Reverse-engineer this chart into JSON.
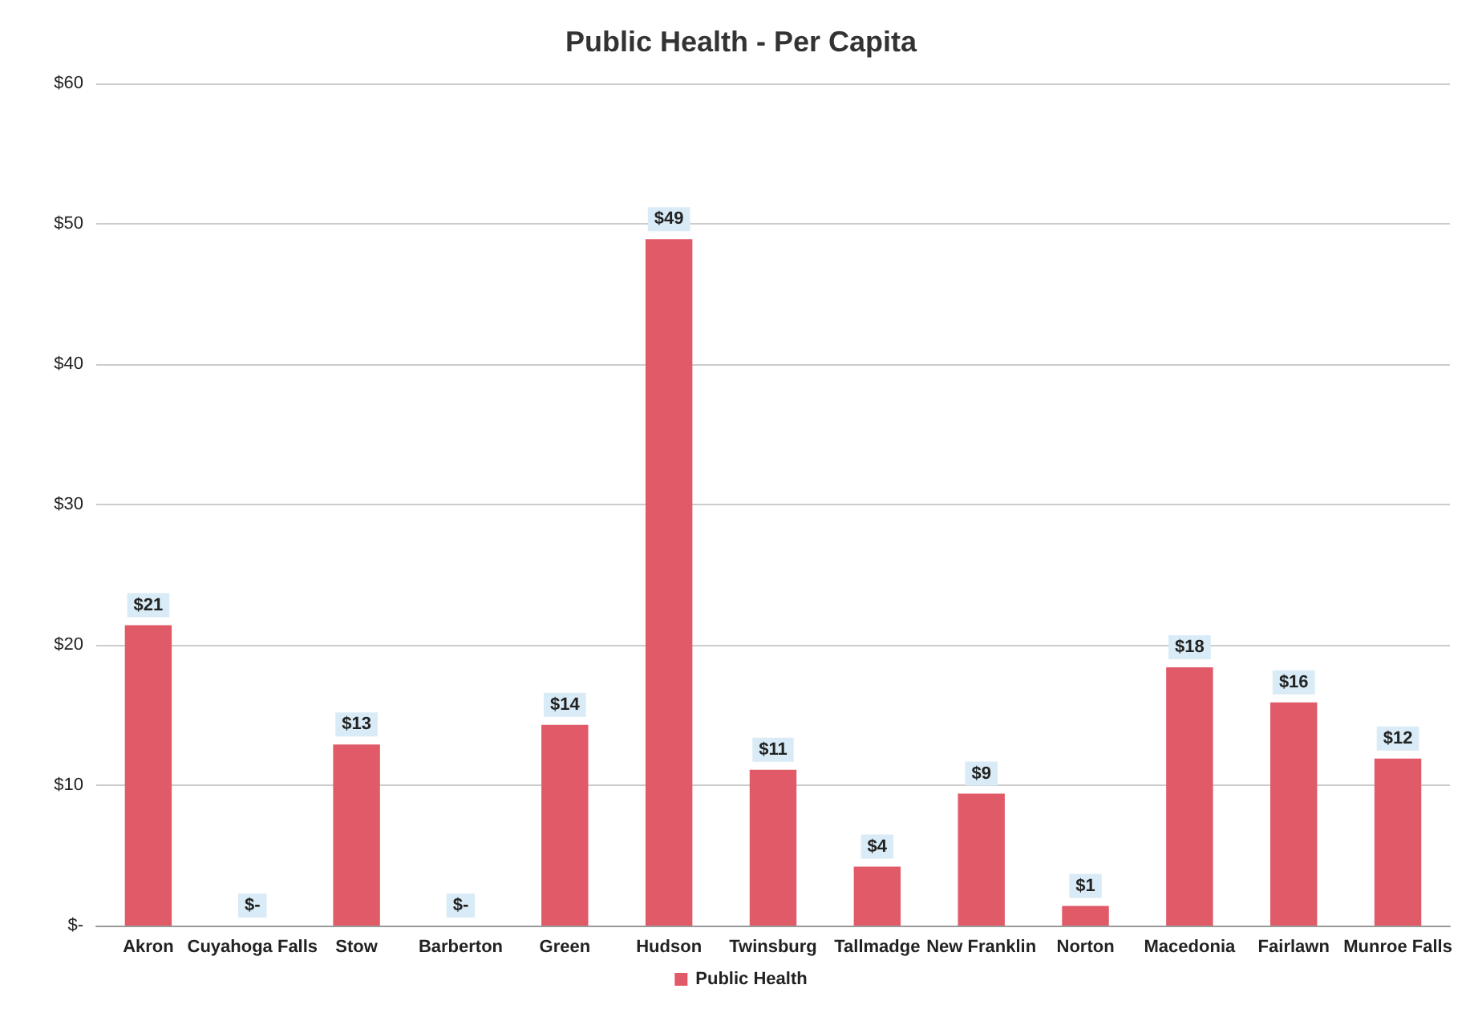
{
  "chart_data": {
    "type": "bar",
    "title": "Public Health - Per Capita",
    "categories": [
      "Akron",
      "Cuyahoga Falls",
      "Stow",
      "Barberton",
      "Green",
      "Hudson",
      "Twinsburg",
      "Tallmadge",
      "New Franklin",
      "Norton",
      "Macedonia",
      "Fairlawn",
      "Munroe Falls"
    ],
    "series": [
      {
        "name": "Public Health",
        "color": "#e05a68",
        "values": [
          21.4,
          0,
          12.9,
          0,
          14.3,
          48.9,
          11.1,
          4.2,
          9.4,
          1.4,
          18.4,
          15.9,
          11.9
        ],
        "value_labels": [
          "$21",
          "$-",
          "$13",
          "$-",
          "$14",
          "$49",
          "$11",
          "$4",
          "$9",
          "$1",
          "$18",
          "$16",
          "$12"
        ]
      }
    ],
    "ylim": [
      0,
      60
    ],
    "yticks": [
      {
        "value": 0,
        "label": "$-"
      },
      {
        "value": 10,
        "label": "$10"
      },
      {
        "value": 20,
        "label": "$20"
      },
      {
        "value": 30,
        "label": "$30"
      },
      {
        "value": 40,
        "label": "$40"
      },
      {
        "value": 50,
        "label": "$50"
      },
      {
        "value": 60,
        "label": "$60"
      }
    ],
    "grid": "y",
    "legend": "bottom"
  }
}
